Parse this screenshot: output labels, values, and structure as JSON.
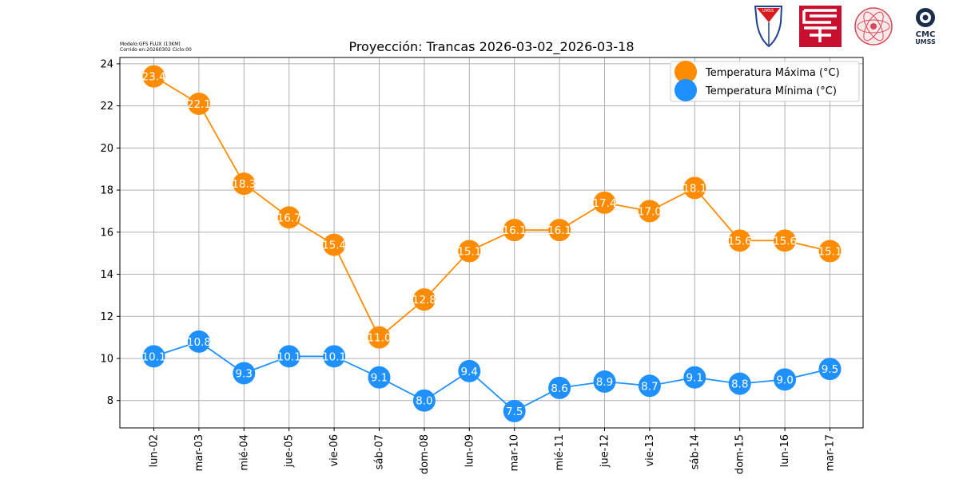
{
  "meta": {
    "model_line": "Modelo:GFS FLUX (13KM)",
    "run_line": "Corrido en:20260302 Ciclo:00"
  },
  "logos": {
    "umss_seal_text": "UMSS",
    "cmc_line1": "CMC",
    "cmc_line2": "UMSS"
  },
  "colors": {
    "max": "#ff8c00",
    "min": "#1e90ff",
    "grid": "#b0b0b0"
  },
  "chart_data": {
    "type": "line",
    "title": "Proyección: Trancas 2026-03-02_2026-03-18",
    "xlabel": "",
    "ylabel": "",
    "categories": [
      "lun-02",
      "mar-03",
      "mié-04",
      "jue-05",
      "vie-06",
      "sáb-07",
      "dom-08",
      "lun-09",
      "mar-10",
      "mié-11",
      "jue-12",
      "vie-13",
      "sáb-14",
      "dom-15",
      "lun-16",
      "mar-17"
    ],
    "series": [
      {
        "name": "Temperatura Máxima  (°C)",
        "values": [
          23.4,
          22.1,
          18.3,
          16.7,
          15.4,
          11.0,
          12.8,
          15.1,
          16.1,
          16.1,
          17.4,
          17.0,
          18.1,
          15.6,
          15.6,
          15.1
        ]
      },
      {
        "name": "Temperatura Mínima  (°C)",
        "values": [
          10.1,
          10.8,
          9.3,
          10.1,
          10.1,
          9.1,
          8.0,
          9.4,
          7.5,
          8.6,
          8.9,
          8.7,
          9.1,
          8.8,
          9.0,
          9.5
        ]
      }
    ],
    "ylim": [
      6.7,
      24.3
    ],
    "yticks": [
      8,
      10,
      12,
      14,
      16,
      18,
      20,
      22,
      24
    ],
    "grid": true,
    "legend": "top-right"
  }
}
